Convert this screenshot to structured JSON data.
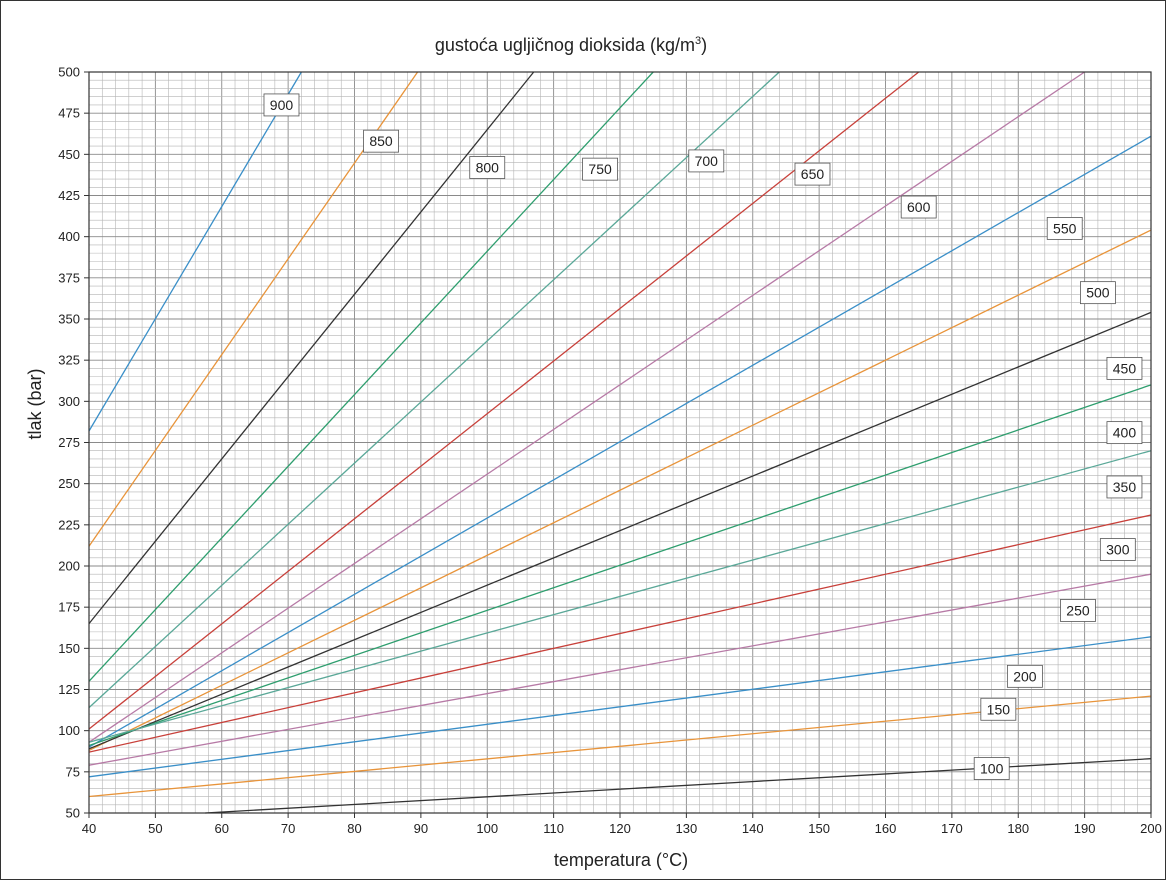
{
  "chart_data": {
    "type": "line",
    "title": "gustoća ugljičnog dioksida (kg/m",
    "title_superscript": "3",
    "title_suffix": ")",
    "xlabel": "temperatura (°C)",
    "ylabel": "tlak (bar)",
    "xlim": [
      40,
      200
    ],
    "ylim": [
      50,
      500
    ],
    "x_ticks": [
      "40",
      "50",
      "60",
      "70",
      "80",
      "90",
      "100",
      "110",
      "120",
      "130",
      "140",
      "150",
      "160",
      "170",
      "180",
      "190",
      "200"
    ],
    "y_ticks": [
      "50",
      "75",
      "100",
      "125",
      "150",
      "175",
      "200",
      "225",
      "250",
      "275",
      "300",
      "325",
      "350",
      "375",
      "400",
      "425",
      "450",
      "475",
      "500"
    ],
    "grid": true,
    "series": [
      {
        "name": "900",
        "color": "#3a8fc8",
        "x": [
          40,
          72
        ],
        "y": [
          282,
          500
        ],
        "label_at": [
          69,
          480
        ]
      },
      {
        "name": "850",
        "color": "#e8943a",
        "x": [
          40,
          89.5
        ],
        "y": [
          212,
          500
        ],
        "label_at": [
          84,
          458
        ]
      },
      {
        "name": "800",
        "color": "#333333",
        "x": [
          40,
          107
        ],
        "y": [
          165,
          500
        ],
        "label_at": [
          100,
          442
        ]
      },
      {
        "name": "750",
        "color": "#2e9e6e",
        "x": [
          40,
          125
        ],
        "y": [
          130,
          500
        ],
        "label_at": [
          117,
          441
        ]
      },
      {
        "name": "700",
        "color": "#5aa898",
        "x": [
          40,
          144
        ],
        "y": [
          114,
          500
        ],
        "label_at": [
          133,
          446
        ]
      },
      {
        "name": "650",
        "color": "#c8403a",
        "x": [
          40,
          165
        ],
        "y": [
          101,
          500
        ],
        "label_at": [
          149,
          438
        ]
      },
      {
        "name": "600",
        "color": "#b77aa6",
        "x": [
          40,
          190
        ],
        "y": [
          93,
          500
        ],
        "label_at": [
          165,
          418
        ]
      },
      {
        "name": "550",
        "color": "#3a8fc8",
        "x": [
          40,
          200
        ],
        "y": [
          90,
          461
        ],
        "label_at": [
          187,
          405
        ]
      },
      {
        "name": "500",
        "color": "#e8943a",
        "x": [
          40,
          200
        ],
        "y": [
          88,
          404
        ],
        "label_at": [
          192,
          366
        ]
      },
      {
        "name": "450",
        "color": "#333333",
        "x": [
          40,
          200
        ],
        "y": [
          89,
          354
        ],
        "label_at": [
          196,
          320
        ]
      },
      {
        "name": "400",
        "color": "#2e9e6e",
        "x": [
          40,
          200
        ],
        "y": [
          91,
          310
        ],
        "label_at": [
          196,
          281
        ]
      },
      {
        "name": "350",
        "color": "#5aa898",
        "x": [
          40,
          200
        ],
        "y": [
          93,
          270
        ],
        "label_at": [
          196,
          248
        ]
      },
      {
        "name": "300",
        "color": "#c8403a",
        "x": [
          40,
          200
        ],
        "y": [
          87,
          231
        ],
        "label_at": [
          195,
          210
        ]
      },
      {
        "name": "250",
        "color": "#b77aa6",
        "x": [
          40,
          200
        ],
        "y": [
          79,
          195
        ],
        "label_at": [
          189,
          173
        ]
      },
      {
        "name": "200",
        "color": "#3a8fc8",
        "x": [
          40,
          200
        ],
        "y": [
          72,
          157
        ],
        "label_at": [
          181,
          133
        ]
      },
      {
        "name": "150",
        "color": "#e8943a",
        "x": [
          40,
          200
        ],
        "y": [
          60,
          121
        ],
        "label_at": [
          177,
          113
        ]
      },
      {
        "name": "100",
        "color": "#333333",
        "x": [
          57.5,
          200
        ],
        "y": [
          50,
          83
        ],
        "label_at": [
          176,
          77
        ]
      }
    ]
  }
}
